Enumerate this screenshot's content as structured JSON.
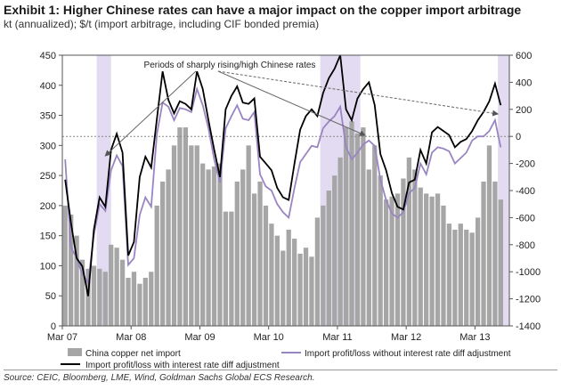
{
  "chart_data": {
    "type": "bar+line",
    "title": "Exhibit 1: Higher Chinese rates can have a major impact on the copper import arbitrage",
    "subtitle": "kt (annualized); $/t (import arbitrage, including CIF bonded premia)",
    "annotation": "Periods of sharply rising/high Chinese rates",
    "source": "Source: CEIC, Bloomberg, LME, Wind, Goldman Sachs Global ECS Research.",
    "x_ticks": [
      "Mar 07",
      "Mar 08",
      "Mar 09",
      "Mar 10",
      "Mar 11",
      "Mar 12",
      "Mar 13"
    ],
    "x_range": [
      0,
      78
    ],
    "y_left": {
      "min": 0,
      "max": 450,
      "ticks": [
        0,
        50,
        100,
        150,
        200,
        250,
        300,
        350,
        400,
        450
      ]
    },
    "y_right": {
      "min": -1400,
      "max": 600,
      "ticks": [
        -1400,
        -1200,
        -1000,
        -800,
        -600,
        -400,
        -200,
        0,
        200,
        400,
        600
      ]
    },
    "shaded_periods": [
      [
        6,
        8.5
      ],
      [
        45,
        52
      ],
      [
        76,
        78
      ]
    ],
    "series": [
      {
        "name": "China copper net import",
        "type": "bar",
        "axis": "left",
        "color": "#a6a6a6",
        "values": [
          200,
          185,
          150,
          110,
          95,
          100,
          95,
          90,
          135,
          130,
          110,
          80,
          90,
          70,
          80,
          90,
          200,
          240,
          260,
          300,
          330,
          330,
          300,
          300,
          270,
          260,
          265,
          270,
          190,
          190,
          240,
          260,
          300,
          220,
          240,
          200,
          170,
          150,
          125,
          160,
          145,
          120,
          130,
          115,
          180,
          200,
          225,
          250,
          280,
          330,
          340,
          320,
          330,
          260,
          300,
          250,
          210,
          215,
          220,
          245,
          280,
          260,
          230,
          220,
          215,
          220,
          200,
          170,
          160,
          170,
          160,
          155,
          180,
          240,
          300,
          240,
          210
        ]
      },
      {
        "name": "Import profit/loss with interest rate diff adjustment",
        "type": "line",
        "axis": "right",
        "color": "#000000",
        "values": [
          -320,
          -640,
          -900,
          -960,
          -1180,
          -690,
          -450,
          -520,
          -100,
          20,
          -120,
          -880,
          -780,
          -300,
          -150,
          -230,
          130,
          480,
          270,
          170,
          260,
          240,
          200,
          480,
          350,
          120,
          -100,
          -300,
          200,
          300,
          370,
          250,
          240,
          280,
          -150,
          -200,
          -250,
          -380,
          -450,
          -470,
          -200,
          50,
          150,
          200,
          150,
          320,
          430,
          500,
          600,
          200,
          120,
          280,
          350,
          400,
          230,
          -130,
          -250,
          -420,
          -520,
          -540,
          -340,
          -320,
          -100,
          -200,
          30,
          70,
          40,
          10,
          -80,
          -40,
          -20,
          40,
          120,
          180,
          260,
          390,
          230
        ]
      },
      {
        "name": "Import profit/loss without interest rate diff adjustment",
        "type": "line",
        "axis": "right",
        "color": "#9985c2",
        "values": [
          -170,
          -820,
          -900,
          -1020,
          -1080,
          -730,
          -500,
          -550,
          -250,
          -140,
          -220,
          -950,
          -900,
          -580,
          -450,
          -520,
          20,
          250,
          220,
          120,
          210,
          200,
          180,
          350,
          230,
          60,
          -170,
          -340,
          60,
          150,
          230,
          130,
          120,
          180,
          -280,
          -370,
          -400,
          -500,
          -560,
          -600,
          -380,
          -190,
          -130,
          -70,
          -80,
          60,
          110,
          150,
          220,
          -80,
          -170,
          -120,
          -60,
          -30,
          -70,
          -320,
          -470,
          -570,
          -600,
          -560,
          -420,
          -380,
          -200,
          -280,
          -120,
          -80,
          -90,
          -110,
          -200,
          -160,
          -120,
          -30,
          0,
          0,
          40,
          120,
          -80
        ]
      }
    ],
    "legend": [
      {
        "label": "China copper net import"
      },
      {
        "label": "Import profit/loss without interest rate diff adjustment"
      },
      {
        "label": "Import profit/loss with interest rate diff adjustment"
      }
    ]
  }
}
